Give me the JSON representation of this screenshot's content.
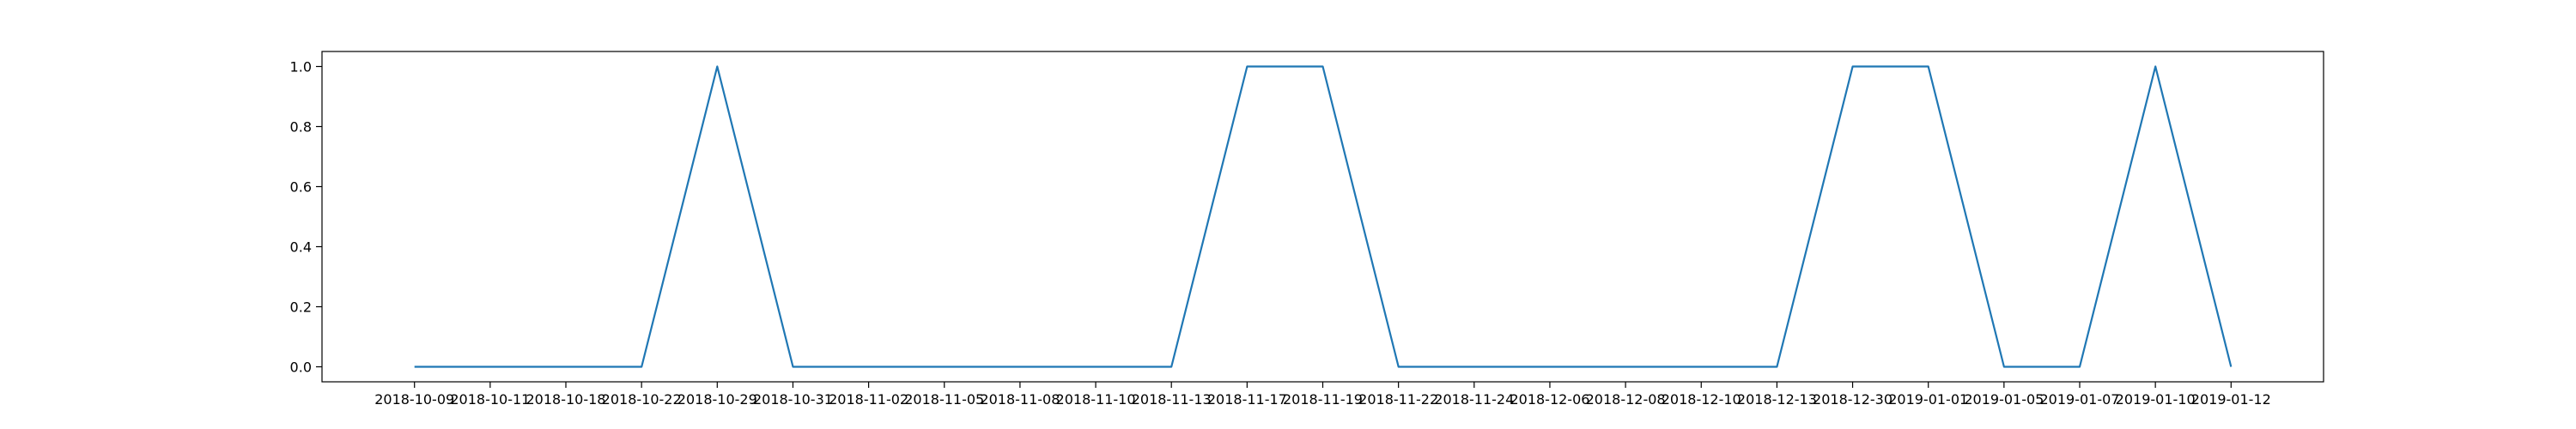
{
  "chart_data": {
    "type": "line",
    "title": "",
    "xlabel": "",
    "ylabel": "",
    "categories": [
      "2018-10-09",
      "2018-10-11",
      "2018-10-18",
      "2018-10-22",
      "2018-10-29",
      "2018-10-31",
      "2018-11-02",
      "2018-11-05",
      "2018-11-08",
      "2018-11-10",
      "2018-11-13",
      "2018-11-17",
      "2018-11-19",
      "2018-11-22",
      "2018-11-24",
      "2018-12-06",
      "2018-12-08",
      "2018-12-10",
      "2018-12-13",
      "2018-12-30",
      "2019-01-01",
      "2019-01-05",
      "2019-01-07",
      "2019-01-10",
      "2019-01-12"
    ],
    "series": [
      {
        "values": [
          0,
          0,
          0,
          0,
          1,
          0,
          0,
          0,
          0,
          0,
          0,
          1,
          1,
          0,
          0,
          0,
          0,
          0,
          0,
          1,
          1,
          0,
          0,
          1,
          0
        ],
        "color": "#1f77b4"
      }
    ],
    "yticks": [
      {
        "value": 0.0,
        "label": "0.0"
      },
      {
        "value": 0.2,
        "label": "0.2"
      },
      {
        "value": 0.4,
        "label": "0.4"
      },
      {
        "value": 0.6,
        "label": "0.6"
      },
      {
        "value": 0.8,
        "label": "0.8"
      },
      {
        "value": 1.0,
        "label": "1.0"
      }
    ],
    "ylim": [
      -0.05,
      1.05
    ],
    "grid": false,
    "legend": "none"
  }
}
